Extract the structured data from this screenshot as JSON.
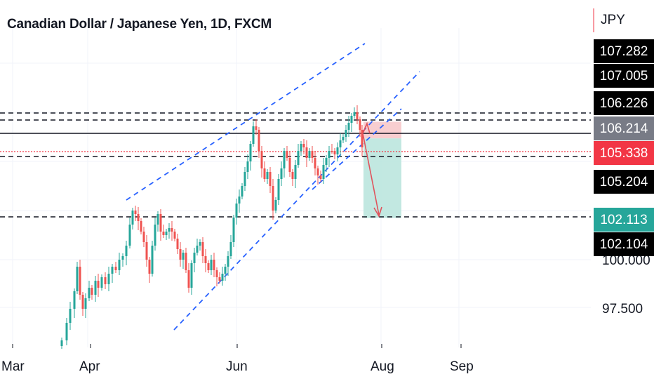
{
  "header": {
    "title": "Canadian Dollar / Japanese Yen, 1D, FXCM",
    "currency": "JPY"
  },
  "colors": {
    "up": "#26a69a",
    "down": "#ef5350",
    "channel": "#2962ff",
    "dashed_level": "#131722",
    "stop_zone": "#f7c6c8",
    "target_zone": "#b7e4dc",
    "arrow": "#e0535c",
    "current_price": "#f23645",
    "target_label": "#26a69a",
    "gray_label": "#787b86",
    "black_label": "#000000"
  },
  "chart_data": {
    "type": "candlestick",
    "symbol": "Canadian Dollar / Japanese Yen",
    "interval": "1D",
    "source": "FXCM",
    "y_axis_ticks": [
      "100.000",
      "97.500"
    ],
    "x_axis_ticks": [
      "Mar",
      "Apr",
      "Jun",
      "Aug",
      "Sep"
    ],
    "price_labels": [
      {
        "value": "107.282",
        "style": "black"
      },
      {
        "value": "107.005",
        "style": "black"
      },
      {
        "value": "106.226",
        "style": "black"
      },
      {
        "value": "106.214",
        "style": "gray"
      },
      {
        "value": "105.338",
        "style": "red"
      },
      {
        "value": "105.204",
        "style": "black"
      },
      {
        "value": "102.113",
        "style": "green"
      },
      {
        "value": "102.104",
        "style": "black"
      }
    ],
    "horizontal_levels": [
      {
        "price": 106.226,
        "style": "dashed"
      },
      {
        "price": 106.214,
        "style": "solid"
      },
      {
        "price": 105.204,
        "style": "dashed"
      },
      {
        "price": 102.104,
        "style": "dashed"
      }
    ],
    "channel": {
      "style": "dashed",
      "color": "blue"
    },
    "position": {
      "type": "short",
      "entry": 106.214,
      "stop": 107.0,
      "target": 102.113
    },
    "current_price": 105.338
  }
}
